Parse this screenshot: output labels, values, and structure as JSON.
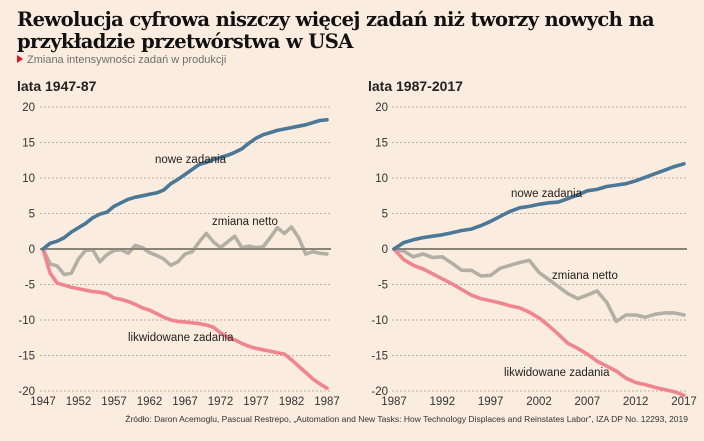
{
  "header": {
    "title": "Rewolucja cyfrowa niszczy więcej zadań niż tworzy nowych na przykładzie przetwórstwa w USA",
    "subtitle": "Zmiana intensywności zadań w produkcji",
    "subtitle_marker_color": "#e0141e"
  },
  "source": "Źródło: Daron Acemoglu, Pascual Restrepo, „Automation and New Tasks: How Technology Displaces and Reinstates Labor”, IZA DP No. 12293, 2019",
  "colors": {
    "nowe": "#4a7896",
    "netto": "#b2b0a6",
    "likwidowane": "#f0858d",
    "zero_line": "#8a8474",
    "grid": "#b8aea4",
    "background": "#fbece0"
  },
  "chart_data": [
    {
      "type": "line",
      "title": "lata 1947-87",
      "xlabel": "",
      "ylabel": "",
      "ylim": [
        -20,
        20
      ],
      "xlim": [
        1947,
        1987
      ],
      "yticks": [
        "20",
        "15",
        "10",
        "5",
        "0",
        "-5",
        "-10",
        "-15",
        "-20"
      ],
      "ytick_values": [
        20,
        15,
        10,
        5,
        0,
        -5,
        -10,
        -15,
        -20
      ],
      "xticks": [
        "1947",
        "1952",
        "1957",
        "1962",
        "1967",
        "1972",
        "1977",
        "1982",
        "1987"
      ],
      "grid": "horizontal-dashed",
      "x": [
        1947,
        1948,
        1949,
        1950,
        1951,
        1952,
        1953,
        1954,
        1955,
        1956,
        1957,
        1958,
        1959,
        1960,
        1961,
        1962,
        1963,
        1964,
        1965,
        1966,
        1967,
        1968,
        1969,
        1970,
        1971,
        1972,
        1973,
        1974,
        1975,
        1976,
        1977,
        1978,
        1979,
        1980,
        1981,
        1982,
        1983,
        1984,
        1985,
        1986,
        1987
      ],
      "series": [
        {
          "name": "nowe zadania",
          "key": "nowe",
          "values": [
            0,
            0.8,
            1.1,
            1.6,
            2.4,
            3.0,
            3.6,
            4.4,
            4.9,
            5.2,
            6.0,
            6.5,
            7.0,
            7.3,
            7.5,
            7.7,
            7.9,
            8.3,
            9.2,
            9.8,
            10.5,
            11.2,
            11.9,
            12.2,
            12.6,
            12.9,
            13.2,
            13.6,
            14.1,
            14.9,
            15.6,
            16.1,
            16.4,
            16.7,
            16.9,
            17.1,
            17.3,
            17.5,
            17.8,
            18.1,
            18.2
          ]
        },
        {
          "name": "zmiana netto",
          "key": "netto",
          "values": [
            0,
            -2.1,
            -2.4,
            -3.6,
            -3.4,
            -1.4,
            -0.2,
            -0.1,
            -1.8,
            -0.8,
            -0.2,
            -0.1,
            -0.6,
            0.5,
            0.2,
            -0.5,
            -0.9,
            -1.4,
            -2.3,
            -1.8,
            -0.7,
            -0.4,
            1.0,
            2.2,
            1.0,
            0.2,
            1.0,
            1.8,
            0.2,
            0.4,
            0.2,
            0.3,
            1.6,
            3.0,
            2.2,
            3.1,
            1.6,
            -0.7,
            -0.4,
            -0.6,
            -0.7
          ]
        },
        {
          "name": "likwidowane zadania",
          "key": "likwidowane",
          "values": [
            0,
            -3.4,
            -4.8,
            -5.1,
            -5.4,
            -5.6,
            -5.8,
            -6.0,
            -6.1,
            -6.3,
            -6.9,
            -7.1,
            -7.4,
            -7.8,
            -8.3,
            -8.6,
            -9.1,
            -9.6,
            -10.0,
            -10.2,
            -10.3,
            -10.4,
            -10.5,
            -10.7,
            -11.0,
            -11.8,
            -12.4,
            -12.8,
            -13.3,
            -13.7,
            -14.0,
            -14.2,
            -14.4,
            -14.6,
            -14.8,
            -15.6,
            -16.5,
            -17.4,
            -18.3,
            -19.0,
            -19.6
          ]
        }
      ],
      "annotations": [
        {
          "text": "nowe zadania",
          "series": "nowe"
        },
        {
          "text": "zmiana netto",
          "series": "netto"
        },
        {
          "text": "likwidowane zadania",
          "series": "likwidowane"
        }
      ]
    },
    {
      "type": "line",
      "title": "lata 1987-2017",
      "xlabel": "",
      "ylabel": "",
      "ylim": [
        -20,
        20
      ],
      "xlim": [
        1987,
        2017
      ],
      "yticks": [
        "20",
        "15",
        "10",
        "5",
        "0",
        "-5",
        "-10",
        "-15",
        "-20"
      ],
      "ytick_values": [
        20,
        15,
        10,
        5,
        0,
        -5,
        -10,
        -15,
        -20
      ],
      "xticks": [
        "1987",
        "1992",
        "1997",
        "2002",
        "2007",
        "2012",
        "2017"
      ],
      "grid": "horizontal-dashed",
      "x": [
        1987,
        1988,
        1989,
        1990,
        1991,
        1992,
        1993,
        1994,
        1995,
        1996,
        1997,
        1998,
        1999,
        2000,
        2001,
        2002,
        2003,
        2004,
        2005,
        2006,
        2007,
        2008,
        2009,
        2010,
        2011,
        2012,
        2013,
        2014,
        2015,
        2016,
        2017
      ],
      "series": [
        {
          "name": "nowe zadania",
          "key": "nowe",
          "values": [
            0,
            0.9,
            1.3,
            1.6,
            1.8,
            2.0,
            2.3,
            2.6,
            2.8,
            3.3,
            3.9,
            4.6,
            5.3,
            5.8,
            6.0,
            6.3,
            6.5,
            6.6,
            7.1,
            7.6,
            8.2,
            8.4,
            8.8,
            9.0,
            9.2,
            9.6,
            10.1,
            10.6,
            11.1,
            11.6,
            12.0
          ]
        },
        {
          "name": "zmiana netto",
          "key": "netto",
          "values": [
            0,
            -0.3,
            -1.1,
            -0.7,
            -1.2,
            -1.1,
            -2.0,
            -3.0,
            -3.0,
            -3.8,
            -3.7,
            -2.7,
            -2.3,
            -1.9,
            -1.6,
            -3.3,
            -4.3,
            -5.3,
            -6.3,
            -7.0,
            -6.5,
            -5.9,
            -7.5,
            -10.2,
            -9.3,
            -9.3,
            -9.6,
            -9.2,
            -9.0,
            -9.0,
            -9.3
          ]
        },
        {
          "name": "likwidowane zadania",
          "key": "likwidowane",
          "values": [
            0,
            -1.5,
            -2.3,
            -2.8,
            -3.5,
            -4.2,
            -4.9,
            -5.7,
            -6.5,
            -7.0,
            -7.3,
            -7.6,
            -8.0,
            -8.3,
            -8.9,
            -9.7,
            -10.8,
            -12.0,
            -13.3,
            -14.0,
            -14.8,
            -15.8,
            -16.5,
            -17.2,
            -18.2,
            -18.8,
            -19.1,
            -19.5,
            -19.8,
            -20.1,
            -20.6
          ]
        }
      ],
      "annotations": [
        {
          "text": "nowe zadania",
          "series": "nowe"
        },
        {
          "text": "zmiana netto",
          "series": "netto"
        },
        {
          "text": "likwidowane zadania",
          "series": "likwidowane"
        }
      ]
    }
  ]
}
